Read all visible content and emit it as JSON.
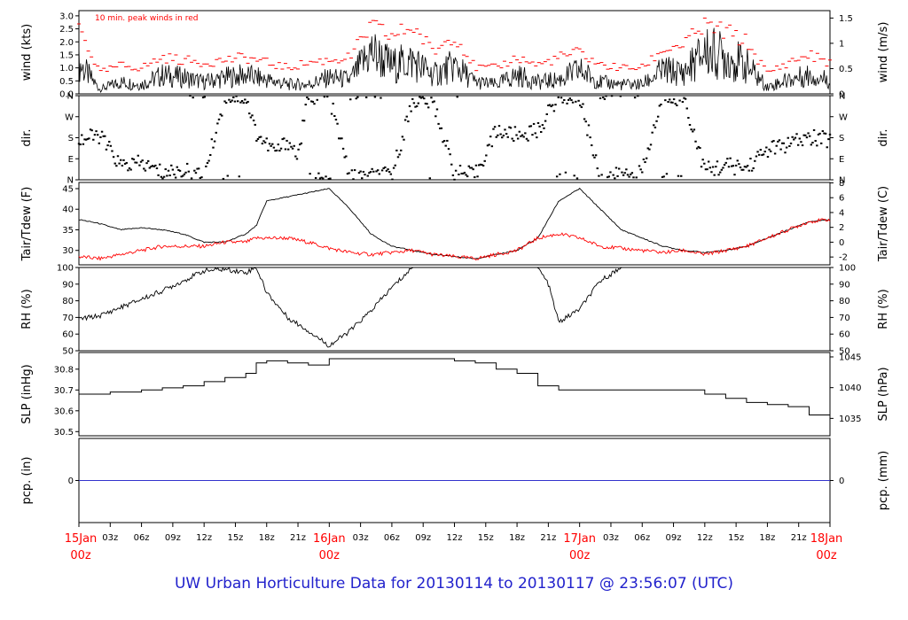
{
  "title": "UW Urban Horticulture Data for 20130114  to  20130117 @ 23:56:07  (UTC)",
  "colors": {
    "axis": "#000000",
    "red": "#ff0000",
    "blue": "#2222cc",
    "zero_line": "#3333cc"
  },
  "x_axis": {
    "hour_ticks": [
      "03z",
      "06z",
      "09z",
      "12z",
      "15z",
      "18z",
      "21z",
      "03z",
      "06z",
      "09z",
      "12z",
      "15z",
      "18z",
      "21z",
      "03z",
      "06z",
      "09z",
      "12z",
      "15z",
      "18z",
      "21z"
    ],
    "day_labels": [
      {
        "day": "15Jan",
        "hour": "00z"
      },
      {
        "day": "16Jan",
        "hour": "00z"
      },
      {
        "day": "17Jan",
        "hour": "00z"
      },
      {
        "day": "18Jan",
        "hour": "00z"
      }
    ]
  },
  "chart_data": [
    {
      "type": "line",
      "name": "wind",
      "annotation": "10 min. peak winds in red",
      "ylabel_left": "wind (kts)",
      "ylabel_right": "wind (m/s)",
      "yticks_left": [
        "0.0",
        "0.5",
        "1.0",
        "1.5",
        "2.0",
        "2.5",
        "3.0"
      ],
      "yticks_right": [
        "0",
        "0.5",
        "1",
        "1.5"
      ],
      "ylim": [
        0,
        3.2
      ],
      "x_hours": [
        0,
        2,
        4,
        6,
        8,
        10,
        12,
        14,
        16,
        18,
        20,
        22,
        24,
        26,
        28,
        30,
        32,
        34,
        36,
        38,
        40,
        42,
        44,
        46,
        48,
        50,
        52,
        54,
        56,
        58,
        60,
        62,
        64,
        66,
        68,
        70,
        72
      ],
      "series": [
        {
          "values": [
            1.3,
            0.2,
            0.5,
            0.4,
            0.8,
            0.7,
            0.5,
            0.7,
            0.8,
            0.6,
            0.4,
            0.4,
            0.7,
            0.6,
            1.8,
            1.2,
            1.4,
            0.8,
            1.2,
            0.5,
            0.4,
            0.8,
            0.5,
            0.6,
            1.0,
            0.5,
            0.4,
            0.4,
            1.0,
            0.9,
            1.8,
            1.6,
            1.2,
            0.3,
            0.6,
            0.8,
            0.6
          ]
        },
        {
          "values": [
            2.6,
            0.8,
            1.1,
            1.0,
            1.4,
            1.3,
            1.2,
            1.3,
            1.4,
            1.2,
            1.0,
            1.2,
            1.3,
            1.4,
            2.6,
            2.2,
            2.6,
            1.6,
            2.3,
            1.0,
            1.0,
            1.4,
            1.1,
            1.4,
            1.6,
            1.1,
            1.0,
            1.0,
            1.7,
            1.9,
            2.6,
            2.4,
            2.0,
            0.8,
            1.2,
            1.5,
            1.2
          ]
        }
      ]
    },
    {
      "type": "scatter",
      "name": "wind direction",
      "ylabel_left": "dir.",
      "ylabel_right": "dir.",
      "yticks_left": [
        "N",
        "E",
        "S",
        "W",
        "N"
      ],
      "yticks_right": [
        "N",
        "E",
        "S",
        "W",
        "N"
      ],
      "ylim": [
        0,
        360
      ],
      "x_hours": [
        0,
        2,
        4,
        6,
        8,
        10,
        12,
        14,
        16,
        17,
        18,
        19,
        20,
        21,
        22,
        24,
        26,
        28,
        30,
        32,
        34,
        36,
        38,
        40,
        42,
        44,
        46,
        48,
        50,
        52,
        54,
        56,
        58,
        60,
        62,
        64,
        66,
        68,
        70,
        72
      ],
      "values": [
        170,
        190,
        60,
        70,
        30,
        40,
        10,
        360,
        350,
        200,
        150,
        120,
        170,
        100,
        360,
        355,
        10,
        15,
        20,
        340,
        330,
        30,
        20,
        210,
        190,
        210,
        360,
        350,
        10,
        20,
        30,
        360,
        350,
        40,
        60,
        50,
        130,
        150,
        180,
        170
      ]
    },
    {
      "type": "line",
      "name": "temperature",
      "ylabel_left": "Tair/Tdew (F)",
      "ylabel_right": "Tair/Tdew (C)",
      "yticks_left": [
        "30",
        "35",
        "40",
        "45"
      ],
      "yticks_right": [
        "-2",
        "0",
        "2",
        "4",
        "6",
        "8"
      ],
      "ylim": [
        26.5,
        46.5
      ],
      "x_hours": [
        0,
        2,
        4,
        6,
        8,
        10,
        12,
        14,
        16,
        17,
        18,
        20,
        22,
        24,
        26,
        28,
        30,
        32,
        34,
        36,
        38,
        40,
        42,
        44,
        46,
        48,
        50,
        52,
        54,
        56,
        58,
        60,
        62,
        64,
        66,
        68,
        70,
        72
      ],
      "series": [
        {
          "values": [
            37.5,
            36.5,
            35,
            35.5,
            35,
            34,
            32,
            32,
            34,
            36,
            42,
            43,
            44,
            45,
            40,
            34,
            31,
            30,
            29,
            28.5,
            28,
            29,
            30,
            33,
            42,
            45,
            40,
            35,
            33,
            31,
            30,
            29.5,
            30,
            31,
            33,
            35,
            37,
            37.5
          ]
        },
        {
          "values": [
            28.5,
            28,
            29,
            30,
            31,
            31,
            31,
            32,
            32,
            33,
            33,
            33,
            32,
            30.5,
            29.5,
            29,
            29.5,
            30,
            29,
            28.5,
            28,
            29,
            30,
            33,
            34,
            33,
            31,
            30.5,
            30,
            29.5,
            30,
            29,
            30,
            31,
            33,
            35,
            37,
            37.5
          ]
        }
      ]
    },
    {
      "type": "line",
      "name": "relative humidity",
      "ylabel_left": "RH (%)",
      "ylabel_right": "RH (%)",
      "yticks_left": [
        "50",
        "60",
        "70",
        "80",
        "90",
        "100"
      ],
      "yticks_right": [
        "50",
        "60",
        "70",
        "80",
        "90",
        "100"
      ],
      "ylim": [
        50,
        100
      ],
      "x_hours": [
        0,
        2,
        4,
        6,
        8,
        10,
        12,
        14,
        16,
        17,
        18,
        20,
        22,
        24,
        26,
        28,
        30,
        32,
        34,
        36,
        38,
        40,
        42,
        44,
        45,
        46,
        48,
        50,
        52,
        54,
        56,
        58,
        60,
        62,
        64,
        66,
        68,
        70,
        72
      ],
      "values": [
        69,
        71,
        76,
        81,
        86,
        92,
        98,
        99,
        97,
        100,
        85,
        70,
        62,
        53,
        62,
        74,
        88,
        100,
        100,
        100,
        100,
        100,
        100,
        100,
        90,
        67,
        75,
        92,
        100,
        100,
        100,
        100,
        100,
        100,
        100,
        100,
        100,
        100,
        100
      ]
    },
    {
      "type": "line",
      "name": "sea level pressure",
      "ylabel_left": "SLP (inHg)",
      "ylabel_right": "SLP (hPa)",
      "yticks_left": [
        "30.5",
        "30.6",
        "30.7",
        "30.8"
      ],
      "yticks_right": [
        "1035",
        "1040",
        "1045"
      ],
      "ylim": [
        30.48,
        30.88
      ],
      "x_hours": [
        0,
        3,
        6,
        8,
        10,
        12,
        14,
        16,
        17,
        18,
        20,
        22,
        24,
        26,
        28,
        30,
        32,
        34,
        36,
        38,
        40,
        42,
        44,
        46,
        48,
        50,
        52,
        54,
        56,
        58,
        60,
        62,
        64,
        66,
        68,
        70,
        72
      ],
      "values": [
        30.68,
        30.69,
        30.7,
        30.71,
        30.72,
        30.74,
        30.76,
        30.78,
        30.83,
        30.84,
        30.83,
        30.82,
        30.85,
        30.85,
        30.85,
        30.85,
        30.85,
        30.85,
        30.84,
        30.83,
        30.8,
        30.78,
        30.72,
        30.7,
        30.7,
        30.7,
        30.7,
        30.7,
        30.7,
        30.7,
        30.68,
        30.66,
        30.64,
        30.63,
        30.62,
        30.58,
        30.5
      ]
    },
    {
      "type": "line",
      "name": "precipitation",
      "ylabel_left": "pcp. (in)",
      "ylabel_right": "pcp. (mm)",
      "yticks_left": [
        "0"
      ],
      "yticks_right": [
        "0"
      ],
      "ylim": [
        -1,
        1
      ],
      "x_hours": [
        0,
        72
      ],
      "values": [
        0,
        0
      ]
    }
  ]
}
